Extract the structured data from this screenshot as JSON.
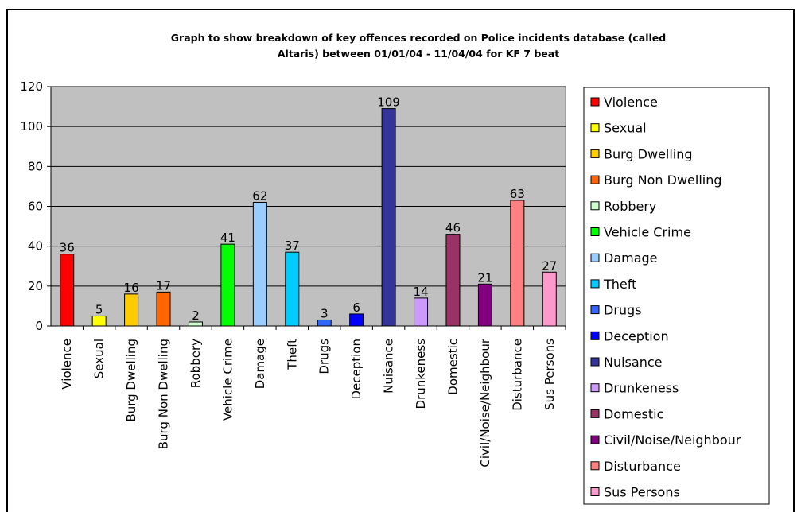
{
  "chart_data": {
    "type": "bar",
    "title_lines": [
      "Graph to show breakdown of key offences recorded on Police incidents database (called",
      "Altaris) between 01/01/04 - 11/04/04 for KF 7 beat"
    ],
    "categories": [
      "Violence",
      "Sexual",
      "Burg Dwelling",
      "Burg Non Dwelling",
      "Robbery",
      "Vehicle Crime",
      "Damage",
      "Theft",
      "Drugs",
      "Deception",
      "Nuisance",
      "Drunkeness",
      "Domestic",
      "Civil/Noise/Neighbour",
      "Disturbance",
      "Sus Persons"
    ],
    "values": [
      36,
      5,
      16,
      17,
      2,
      41,
      62,
      37,
      3,
      6,
      109,
      14,
      46,
      21,
      63,
      27
    ],
    "colors": [
      "#ff0000",
      "#ffff00",
      "#ffcc00",
      "#ff6600",
      "#ccffcc",
      "#00ff00",
      "#99ccff",
      "#00ccff",
      "#3366ff",
      "#0000ff",
      "#333399",
      "#cc99ff",
      "#993366",
      "#800080",
      "#ff8080",
      "#ff99cc"
    ],
    "ylim": [
      0,
      120
    ],
    "yticks": [
      0,
      20,
      40,
      60,
      80,
      100,
      120
    ],
    "plot_background": "#c0c0c0",
    "grid": true,
    "legend_placement": "right",
    "legend": [
      "Violence",
      "Sexual",
      "Burg Dwelling",
      "Burg Non Dwelling",
      "Robbery",
      "Vehicle Crime",
      "Damage",
      "Theft",
      "Drugs",
      "Deception",
      "Nuisance",
      "Drunkeness",
      "Domestic",
      "Civil/Noise/Neighbour",
      "Disturbance",
      "Sus Persons"
    ],
    "xlabel": "",
    "ylabel": ""
  }
}
